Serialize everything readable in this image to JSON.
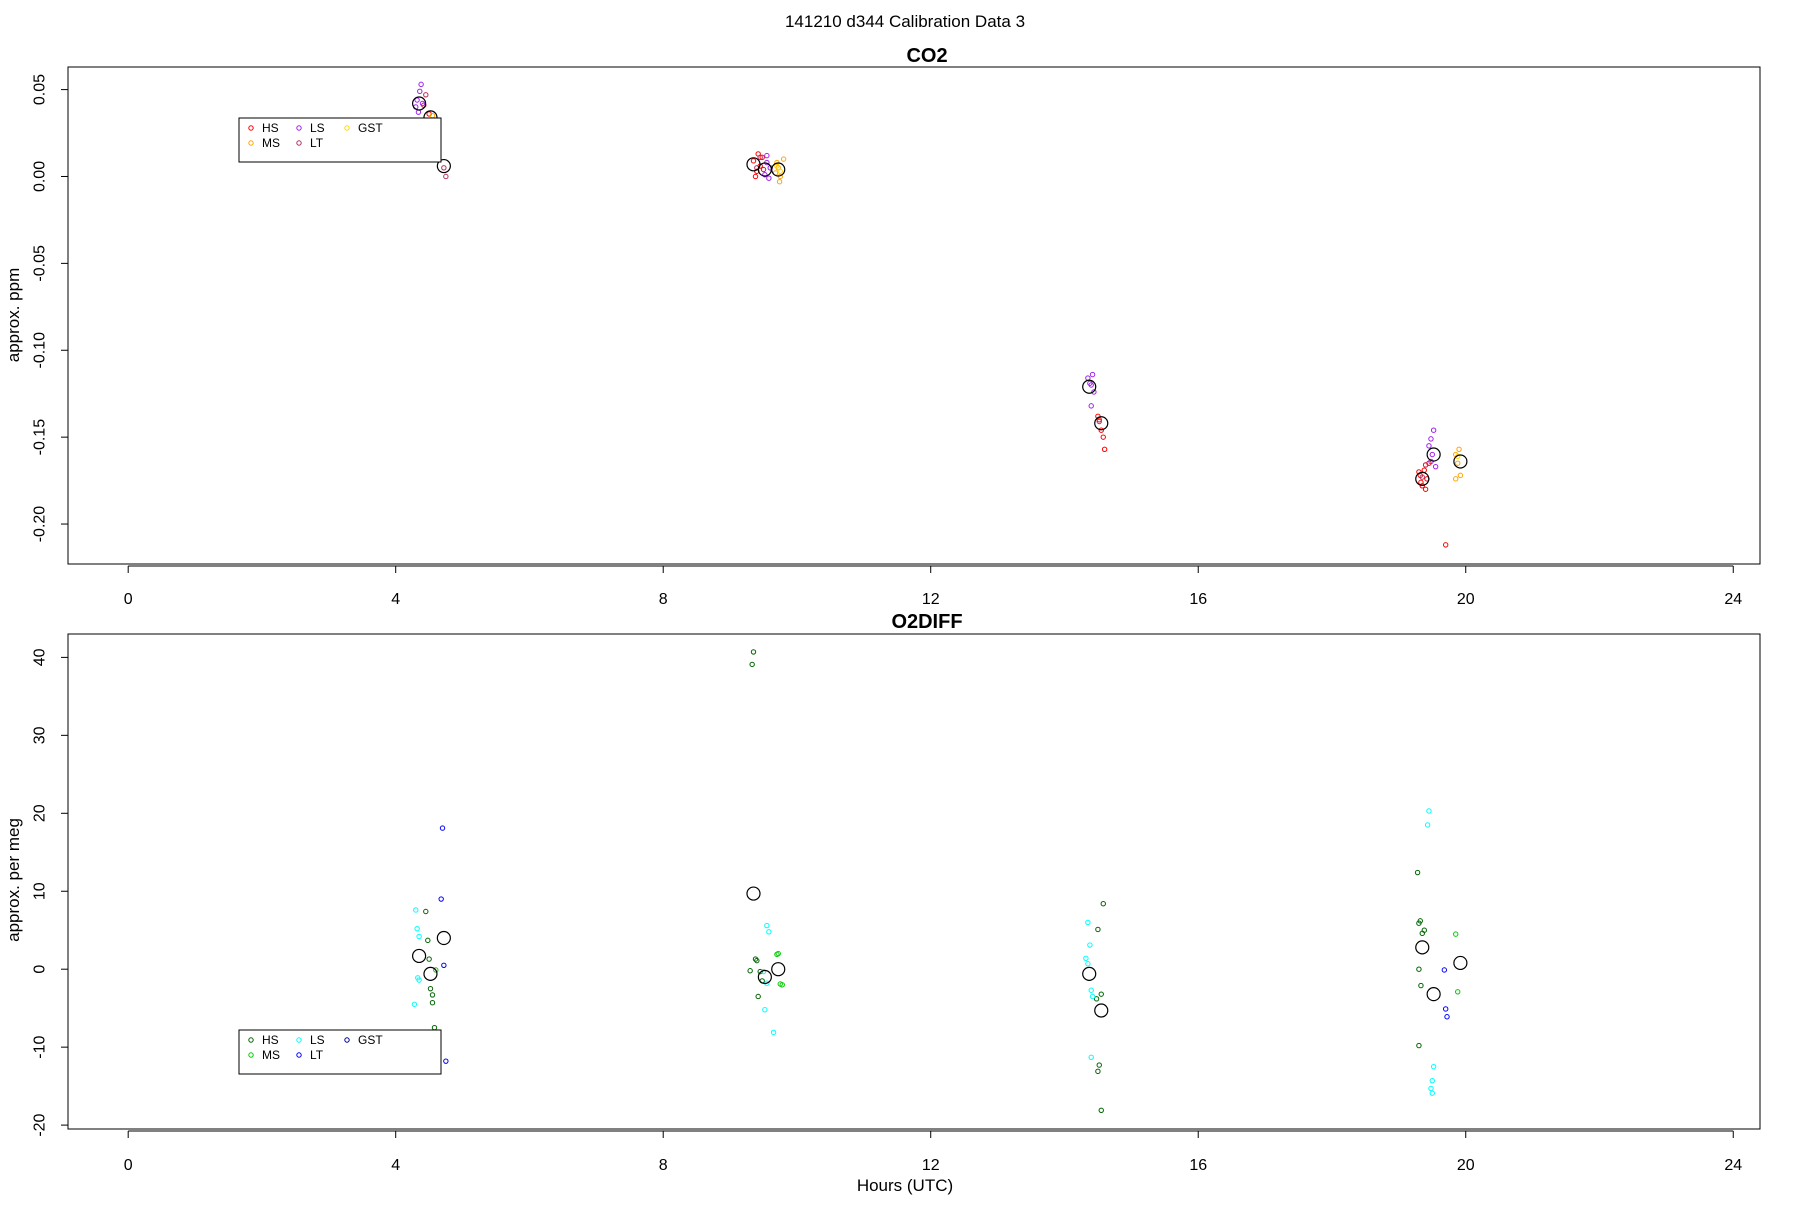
{
  "figure": {
    "title": "141210   d344   Calibration Data 3",
    "xlabel": "Hours (UTC)"
  },
  "chart_data": [
    {
      "type": "scatter",
      "title": "CO2",
      "xlabel": "",
      "ylabel": "approx. ppm",
      "xlim": [
        -0.9,
        24.4
      ],
      "ylim": [
        -0.223,
        0.063
      ],
      "xticks": [
        0,
        4,
        8,
        12,
        16,
        20,
        24
      ],
      "yticks": [
        0.05,
        0.0,
        -0.05,
        -0.1,
        -0.15,
        -0.2
      ],
      "ytick_labels": [
        "0.05",
        "0.00",
        "-0.05",
        "-0.10",
        "-0.15",
        "-0.20"
      ],
      "grid": false,
      "legend_position": "top-left",
      "legend": [
        "HS",
        "MS",
        "LS",
        "LT",
        "GST"
      ],
      "series": [
        {
          "name": "HS",
          "color": "#ff0000",
          "points": [
            [
              4.42,
              0.041
            ],
            [
              4.5,
              0.036
            ],
            [
              9.35,
              0.009
            ],
            [
              9.4,
              0.003
            ],
            [
              9.42,
              0.013
            ],
            [
              9.45,
              0.006
            ],
            [
              9.38,
              0.0
            ],
            [
              9.48,
              0.011
            ],
            [
              9.5,
              0.004
            ],
            [
              14.5,
              -0.138
            ],
            [
              14.52,
              -0.14
            ],
            [
              14.55,
              -0.146
            ],
            [
              14.58,
              -0.15
            ],
            [
              14.6,
              -0.157
            ],
            [
              19.3,
              -0.17
            ],
            [
              19.33,
              -0.176
            ],
            [
              19.35,
              -0.178
            ],
            [
              19.38,
              -0.169
            ],
            [
              19.4,
              -0.18
            ],
            [
              19.42,
              -0.174
            ],
            [
              19.45,
              -0.165
            ],
            [
              19.32,
              -0.172
            ],
            [
              19.4,
              -0.166
            ],
            [
              19.7,
              -0.212
            ]
          ]
        },
        {
          "name": "MS",
          "color": "#ffa500",
          "points": [
            [
              4.55,
              0.035
            ],
            [
              9.68,
              0.002
            ],
            [
              9.7,
              0.008
            ],
            [
              9.72,
              0.005
            ],
            [
              9.75,
              0.0
            ],
            [
              9.8,
              0.01
            ],
            [
              9.74,
              -0.003
            ],
            [
              19.85,
              -0.16
            ],
            [
              19.88,
              -0.165
            ],
            [
              19.9,
              -0.157
            ],
            [
              19.92,
              -0.172
            ],
            [
              19.85,
              -0.174
            ]
          ]
        },
        {
          "name": "LS",
          "color": "#a020f0",
          "points": [
            [
              4.3,
              0.04
            ],
            [
              4.32,
              0.044
            ],
            [
              4.34,
              0.037
            ],
            [
              4.36,
              0.049
            ],
            [
              4.38,
              0.053
            ],
            [
              4.4,
              0.042
            ],
            [
              9.52,
              0.001
            ],
            [
              9.55,
              0.008
            ],
            [
              9.58,
              -0.001
            ],
            [
              9.6,
              0.005
            ],
            [
              9.55,
              0.012
            ],
            [
              14.35,
              -0.116
            ],
            [
              14.38,
              -0.119
            ],
            [
              14.4,
              -0.12
            ],
            [
              14.42,
              -0.114
            ],
            [
              14.44,
              -0.124
            ],
            [
              14.4,
              -0.132
            ],
            [
              19.45,
              -0.155
            ],
            [
              19.48,
              -0.164
            ],
            [
              19.5,
              -0.16
            ],
            [
              19.52,
              -0.146
            ],
            [
              19.55,
              -0.167
            ],
            [
              19.48,
              -0.151
            ]
          ]
        },
        {
          "name": "LT",
          "color": "#b03060",
          "points": [
            [
              4.45,
              0.047
            ],
            [
              4.72,
              0.005
            ],
            [
              4.75,
              0.0
            ],
            [
              9.4,
              0.005
            ],
            [
              9.45,
              0.011
            ],
            [
              14.52,
              -0.141
            ],
            [
              19.35,
              -0.173
            ],
            [
              19.4,
              -0.166
            ]
          ]
        },
        {
          "name": "GST",
          "color": "#ffd700",
          "points": [
            [
              9.7,
              0.006
            ],
            [
              9.75,
              0.003
            ],
            [
              19.88,
              -0.161
            ]
          ]
        },
        {
          "name": "",
          "color": "#000000",
          "mean_marker": true,
          "points": [
            [
              4.35,
              0.042
            ],
            [
              4.52,
              0.034
            ],
            [
              4.72,
              0.006
            ],
            [
              9.35,
              0.007
            ],
            [
              9.52,
              0.004
            ],
            [
              9.72,
              0.004
            ],
            [
              14.37,
              -0.121
            ],
            [
              14.55,
              -0.142
            ],
            [
              19.35,
              -0.174
            ],
            [
              19.52,
              -0.16
            ],
            [
              19.92,
              -0.164
            ]
          ]
        }
      ]
    },
    {
      "type": "scatter",
      "title": "O2DIFF",
      "xlabel": "Hours (UTC)",
      "ylabel": "approx. per meg",
      "xlim": [
        -0.9,
        24.4
      ],
      "ylim": [
        -20.5,
        43.0
      ],
      "xticks": [
        0,
        4,
        8,
        12,
        16,
        20,
        24
      ],
      "yticks": [
        40,
        30,
        20,
        10,
        0,
        -10,
        -20
      ],
      "ytick_labels": [
        "40",
        "30",
        "20",
        "10",
        "0",
        "-10",
        "-20"
      ],
      "grid": false,
      "legend_position": "bottom-left",
      "legend": [
        "HS",
        "MS",
        "LS",
        "LT",
        "GST"
      ],
      "series": [
        {
          "name": "HS",
          "color": "#006400",
          "points": [
            [
              4.45,
              7.4
            ],
            [
              4.48,
              3.7
            ],
            [
              4.5,
              1.3
            ],
            [
              4.52,
              -2.5
            ],
            [
              4.55,
              -3.3
            ],
            [
              4.55,
              -4.3
            ],
            [
              4.58,
              -7.5
            ],
            [
              9.35,
              40.7
            ],
            [
              9.33,
              39.1
            ],
            [
              9.38,
              1.3
            ],
            [
              9.4,
              1.1
            ],
            [
              9.45,
              -0.3
            ],
            [
              9.48,
              -1.5
            ],
            [
              9.42,
              -3.5
            ],
            [
              9.3,
              -0.2
            ],
            [
              14.5,
              5.1
            ],
            [
              14.55,
              -3.2
            ],
            [
              14.48,
              -3.8
            ],
            [
              14.52,
              -12.3
            ],
            [
              14.5,
              -13.1
            ],
            [
              14.55,
              -18.1
            ],
            [
              14.58,
              8.4
            ],
            [
              19.28,
              12.4
            ],
            [
              19.3,
              5.9
            ],
            [
              19.32,
              6.2
            ],
            [
              19.35,
              4.6
            ],
            [
              19.38,
              5.0
            ],
            [
              19.3,
              0.0
            ],
            [
              19.33,
              -2.1
            ],
            [
              19.3,
              -9.8
            ]
          ]
        },
        {
          "name": "MS",
          "color": "#00cc00",
          "points": [
            [
              4.6,
              -0.1
            ],
            [
              9.7,
              1.9
            ],
            [
              9.72,
              2.0
            ],
            [
              9.75,
              -1.9
            ],
            [
              9.78,
              -2.0
            ],
            [
              19.85,
              4.5
            ],
            [
              19.88,
              -2.9
            ]
          ]
        },
        {
          "name": "LS",
          "color": "#00ffff",
          "points": [
            [
              4.3,
              7.6
            ],
            [
              4.32,
              5.2
            ],
            [
              4.35,
              4.2
            ],
            [
              4.33,
              -1.1
            ],
            [
              4.35,
              -1.4
            ],
            [
              4.28,
              -4.5
            ],
            [
              9.55,
              5.6
            ],
            [
              9.58,
              4.8
            ],
            [
              9.5,
              -0.3
            ],
            [
              9.55,
              -1.8
            ],
            [
              9.52,
              -5.2
            ],
            [
              9.65,
              -8.1
            ],
            [
              14.35,
              6.0
            ],
            [
              14.38,
              3.1
            ],
            [
              14.32,
              1.4
            ],
            [
              14.35,
              0.7
            ],
            [
              14.4,
              -2.7
            ],
            [
              14.42,
              -3.5
            ],
            [
              14.4,
              -11.3
            ],
            [
              19.45,
              20.3
            ],
            [
              19.43,
              18.5
            ],
            [
              19.52,
              -12.5
            ],
            [
              19.5,
              -14.3
            ],
            [
              19.48,
              -15.3
            ],
            [
              19.5,
              -15.9
            ]
          ]
        },
        {
          "name": "LT",
          "color": "#0000ff",
          "points": [
            [
              4.7,
              18.1
            ],
            [
              4.68,
              9.0
            ],
            [
              4.72,
              0.5
            ],
            [
              4.75,
              -11.8
            ],
            [
              19.68,
              -0.1
            ],
            [
              19.7,
              -5.1
            ],
            [
              19.72,
              -6.1
            ]
          ]
        },
        {
          "name": "GST",
          "color": "#00008b",
          "points": []
        },
        {
          "name": "",
          "color": "#000000",
          "mean_marker": true,
          "points": [
            [
              4.35,
              1.7
            ],
            [
              4.52,
              -0.6
            ],
            [
              4.72,
              4.0
            ],
            [
              9.35,
              9.7
            ],
            [
              9.52,
              -1.0
            ],
            [
              9.72,
              0.0
            ],
            [
              14.37,
              -0.6
            ],
            [
              14.55,
              -5.3
            ],
            [
              19.35,
              2.8
            ],
            [
              19.52,
              -3.2
            ],
            [
              19.92,
              0.8
            ]
          ]
        }
      ]
    }
  ]
}
